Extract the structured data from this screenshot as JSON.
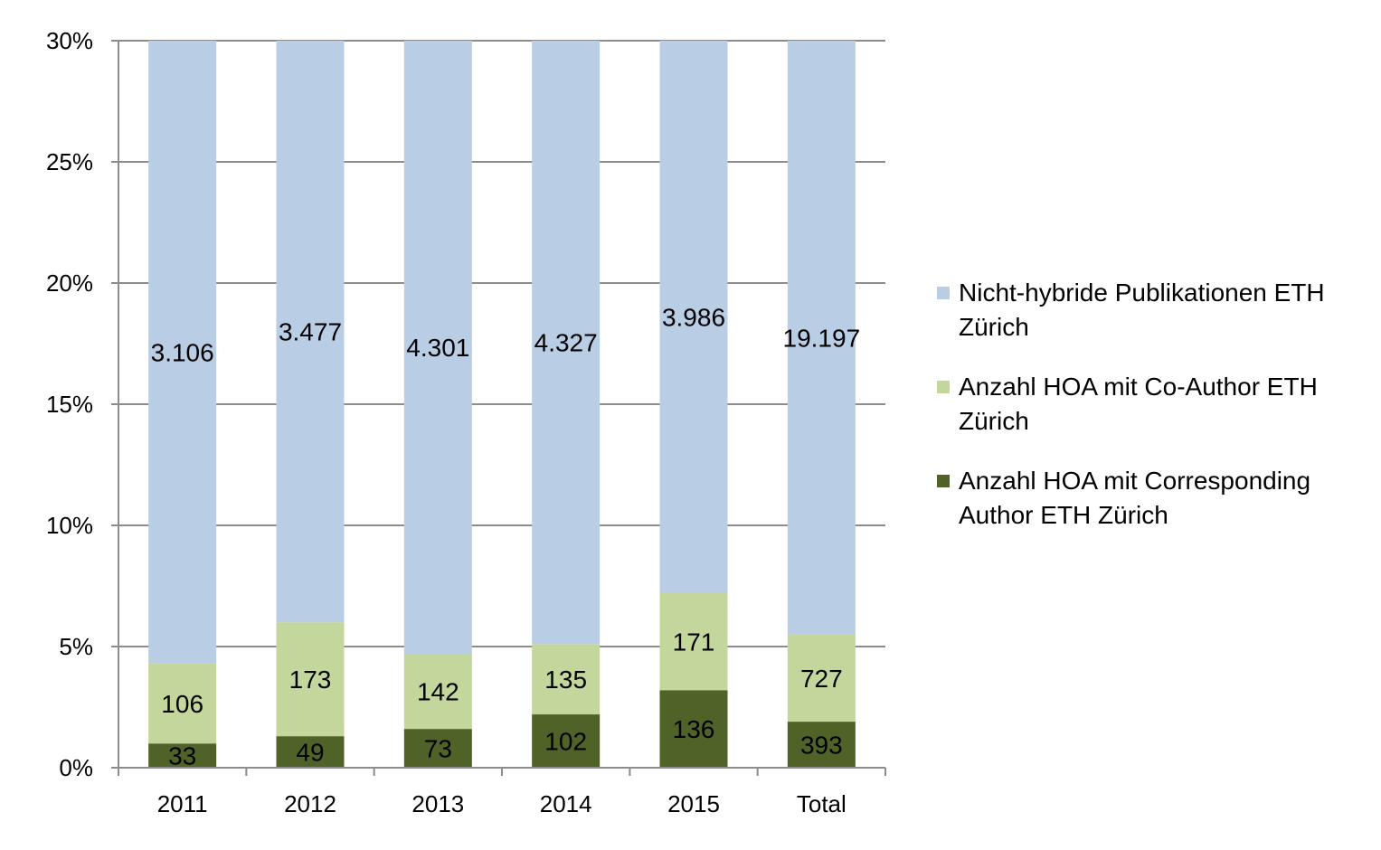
{
  "chart_data": {
    "type": "bar",
    "stacked": true,
    "categories": [
      "2011",
      "2012",
      "2013",
      "2014",
      "2015",
      "Total"
    ],
    "ylim": [
      0,
      30
    ],
    "yticks": [
      "0%",
      "5%",
      "10%",
      "15%",
      "20%",
      "25%",
      "30%"
    ],
    "yticks_values": [
      0,
      5,
      10,
      15,
      20,
      25,
      30
    ],
    "grid": true,
    "legend_position": "right",
    "series": [
      {
        "name": "Anzahl HOA mit Corresponding Author ETH Zürich",
        "color": "#4f6228",
        "values": [
          1.0,
          1.3,
          1.6,
          2.2,
          3.2,
          1.9
        ],
        "labels": [
          "33",
          "49",
          "73",
          "102",
          "136",
          "393"
        ]
      },
      {
        "name": "Anzahl HOA mit Co-Author ETH Zürich",
        "color": "#c3d69b",
        "values": [
          3.3,
          4.7,
          3.1,
          2.9,
          4.0,
          3.6
        ],
        "labels": [
          "106",
          "173",
          "142",
          "135",
          "171",
          "727"
        ]
      },
      {
        "name": "Nicht-hybride Publikationen ETH Zürich",
        "color": "#b9cde5",
        "values": [
          25.7,
          24.0,
          25.3,
          24.9,
          22.8,
          24.5
        ],
        "labels": [
          "3.106",
          "3.477",
          "4.301",
          "4.327",
          "3.986",
          "19.197"
        ]
      }
    ]
  },
  "legend": {
    "items": [
      {
        "label": "Nicht-hybride Publikationen ETH Zürich",
        "color": "#b9cde5"
      },
      {
        "label": "Anzahl HOA mit Co-Author ETH Zürich",
        "color": "#c3d69b"
      },
      {
        "label": "Anzahl HOA mit Corresponding Author ETH Zürich",
        "color": "#4f6228"
      }
    ]
  }
}
